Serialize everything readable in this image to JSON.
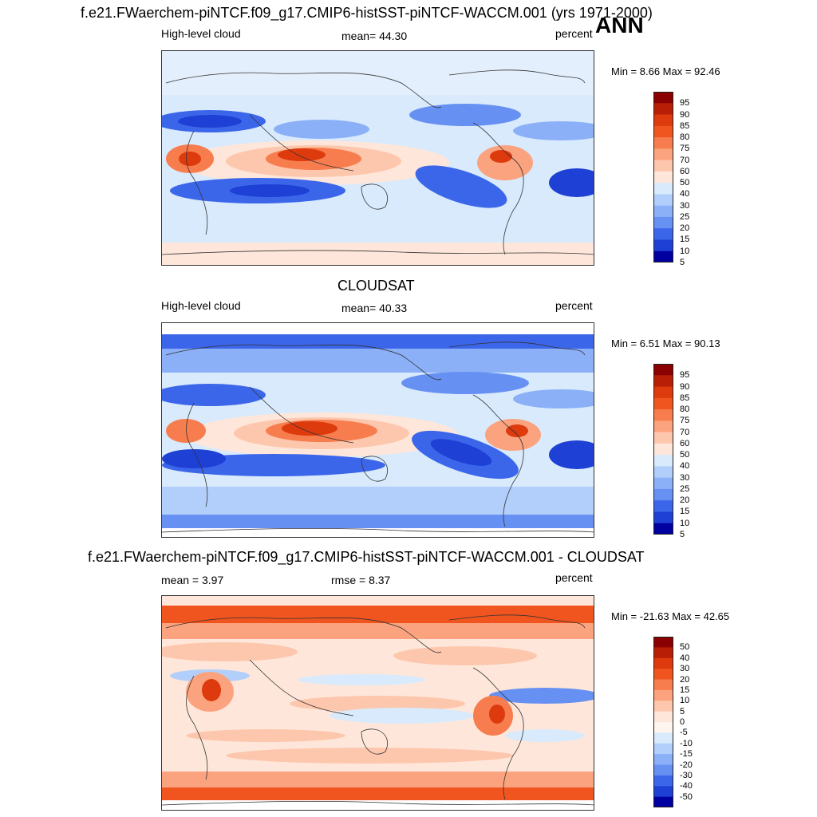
{
  "season": "ANN",
  "panels": [
    {
      "title": "f.e21.FWaerchem-piNTCF.f09_g17.CMIP6-histSST-piNTCF-WACCM.001 (yrs 1971-2000)",
      "left_label": "High-level cloud",
      "center_label": "mean=  44.30",
      "right_label": "percent",
      "minmax": "Min =   8.66 Max =  92.46",
      "levels": [
        "95",
        "90",
        "85",
        "80",
        "75",
        "70",
        "60",
        "50",
        "40",
        "30",
        "25",
        "20",
        "15",
        "10",
        "5"
      ],
      "colors": [
        "#8b0000",
        "#b81d05",
        "#dd3a0e",
        "#f0551f",
        "#f77d4e",
        "#fba37e",
        "#fdc7ad",
        "#fee7da",
        "#d8eafc",
        "#b2cffb",
        "#8bb0f7",
        "#6690f2",
        "#3c66ea",
        "#1e40d4",
        "#0000a0"
      ]
    },
    {
      "title": "CLOUDSAT",
      "left_label": "High-level cloud",
      "center_label": "mean=  40.33",
      "right_label": "percent",
      "minmax": "Min =   6.51 Max =  90.13",
      "levels": [
        "95",
        "90",
        "85",
        "80",
        "75",
        "70",
        "60",
        "50",
        "40",
        "30",
        "25",
        "20",
        "15",
        "10",
        "5"
      ],
      "colors": [
        "#8b0000",
        "#b81d05",
        "#dd3a0e",
        "#f0551f",
        "#f77d4e",
        "#fba37e",
        "#fdc7ad",
        "#fee7da",
        "#d8eafc",
        "#b2cffb",
        "#8bb0f7",
        "#6690f2",
        "#3c66ea",
        "#1e40d4",
        "#0000a0"
      ]
    },
    {
      "title": "f.e21.FWaerchem-piNTCF.f09_g17.CMIP6-histSST-piNTCF-WACCM.001 - CLOUDSAT",
      "left_label": "mean =   3.97",
      "center_label": "rmse =   8.37",
      "right_label": "percent",
      "minmax": "Min = -21.63 Max =  42.65",
      "levels": [
        "50",
        "40",
        "30",
        "20",
        "15",
        "10",
        "5",
        "0",
        "-5",
        "-10",
        "-15",
        "-20",
        "-30",
        "-40",
        "-50"
      ],
      "colors": [
        "#8b0000",
        "#b81d05",
        "#dd3a0e",
        "#f0551f",
        "#f77d4e",
        "#fba37e",
        "#fdc7ad",
        "#fee7da",
        "#fff5ef",
        "#d8eafc",
        "#b2cffb",
        "#8bb0f7",
        "#6690f2",
        "#3c66ea",
        "#1e40d4",
        "#0000a0"
      ]
    }
  ]
}
